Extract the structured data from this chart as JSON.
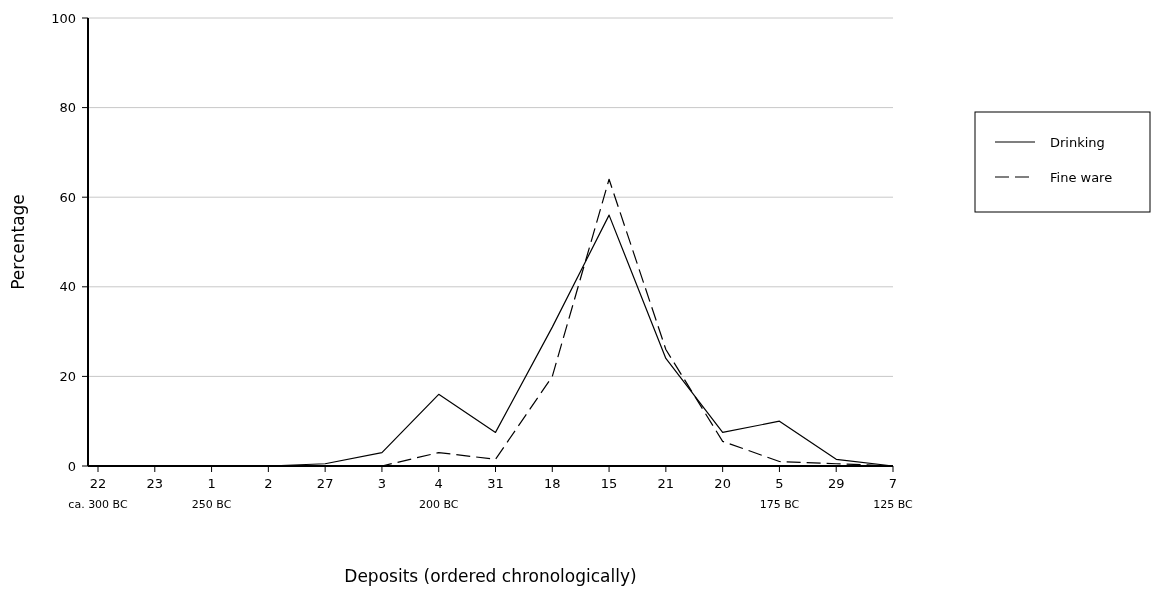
{
  "chart_data": {
    "type": "line",
    "xlabel": "Deposits (ordered chronologically)",
    "ylabel": "Percentage",
    "categories": [
      "22",
      "23",
      "1",
      "2",
      "27",
      "3",
      "4",
      "31",
      "18",
      "15",
      "21",
      "20",
      "5",
      "29",
      "7"
    ],
    "series": [
      {
        "name": "Drinking",
        "color": "#000000",
        "line_style": "solid",
        "values": [
          0,
          0,
          0,
          0,
          0.5,
          3,
          16,
          7.5,
          31,
          56,
          24,
          7.5,
          10,
          1.5,
          0
        ]
      },
      {
        "name": "Fine ware",
        "color": "#000000",
        "line_style": "dashed",
        "values": [
          0,
          0,
          0,
          0,
          0,
          0,
          3,
          1.5,
          20,
          64,
          26,
          5.5,
          1,
          0.5,
          0
        ]
      }
    ],
    "annotations": [
      "ca. 300 BC",
      "250 BC",
      "200 BC",
      "175 BC",
      "125 BC"
    ],
    "ylim": [
      0,
      100
    ],
    "yticks": [
      0,
      20,
      40,
      60,
      80,
      100
    ],
    "grid": "y",
    "legend": "right",
    "marker": "none"
  }
}
